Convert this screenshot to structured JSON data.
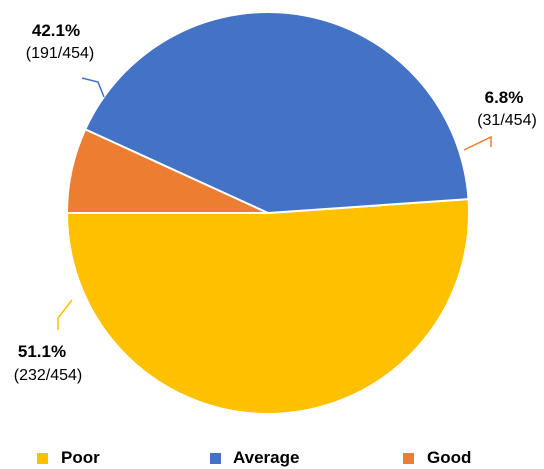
{
  "chart_data": {
    "type": "pie",
    "total": 454,
    "slices": [
      {
        "name": "Poor",
        "value": 232,
        "percent_label": "51.1%",
        "count_label": "(232/454)",
        "color": "#FFC000"
      },
      {
        "name": "Average",
        "value": 191,
        "percent_label": "42.1%",
        "count_label": "(191/454)",
        "color": "#4472C4"
      },
      {
        "name": "Good",
        "value": 31,
        "percent_label": "6.8%",
        "count_label": "(31/454)",
        "color": "#ED7D31"
      }
    ],
    "legend_position": "bottom",
    "start_angle": "9 o'clock",
    "direction": "counterclockwise"
  }
}
